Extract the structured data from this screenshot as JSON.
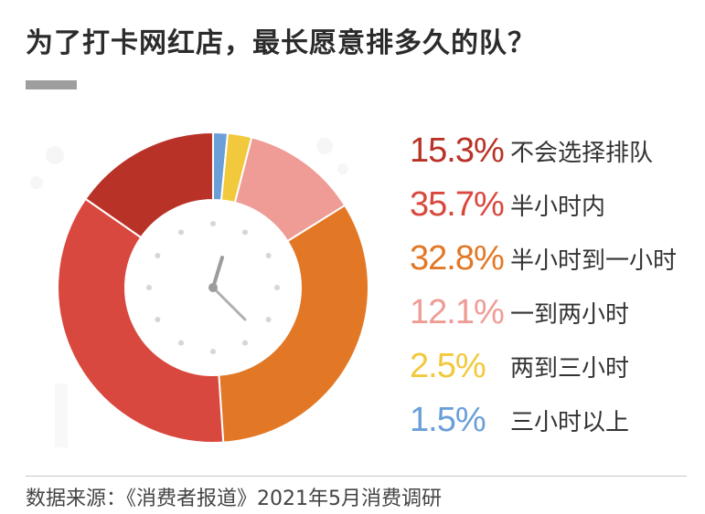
{
  "title": "为了打卡网红店，最长愿意排多久的队？",
  "source": "数据来源：《消费者报道》2021年5月消费调研",
  "chart_data": {
    "type": "pie",
    "title": "为了打卡网红店，最长愿意排多久的队？",
    "slices": [
      {
        "label": "不会选择排队",
        "value": 15.3,
        "display": "15.3%",
        "color": "#b83227"
      },
      {
        "label": "半小时内",
        "value": 35.7,
        "display": "35.7%",
        "color": "#d9483f"
      },
      {
        "label": "半小时到一小时",
        "value": 32.8,
        "display": "32.8%",
        "color": "#e27826"
      },
      {
        "label": "一到两小时",
        "value": 12.1,
        "display": "12.1%",
        "color": "#ee9c95"
      },
      {
        "label": "两到三小时",
        "value": 2.5,
        "display": "2.5%",
        "color": "#f2c93c"
      },
      {
        "label": "三小时以上",
        "value": 1.5,
        "display": "1.5%",
        "color": "#6a9fd8"
      }
    ],
    "legend_position": "right"
  }
}
